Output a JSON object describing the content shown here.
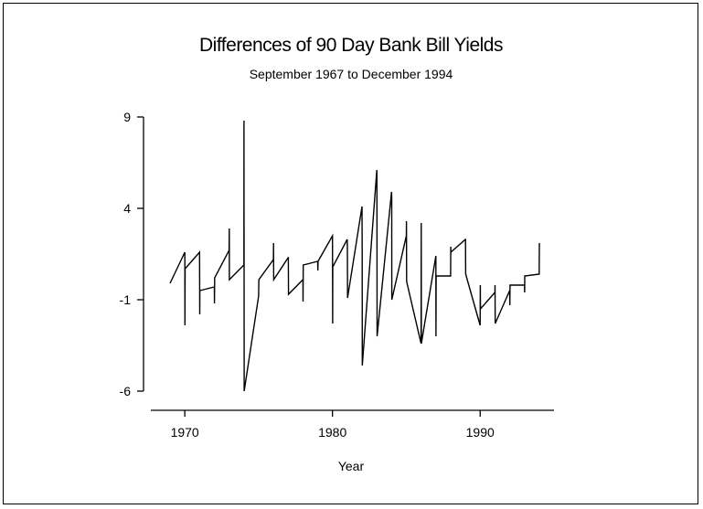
{
  "chart_data": {
    "type": "line",
    "title": "Differences of 90 Day Bank Bill Yields",
    "subtitle": "September 1967 to December 1994",
    "xlabel": "Year",
    "ylabel": "",
    "xlim": [
      1967.7,
      1995.0
    ],
    "ylim": [
      -6.3,
      9.2
    ],
    "xticks": [
      1970,
      1980,
      1990
    ],
    "xtick_labels": [
      "1970",
      "1980",
      "1990"
    ],
    "yticks": [
      9,
      4,
      -1,
      -6
    ],
    "ytick_labels": [
      "9",
      "4",
      "-1",
      "-6"
    ],
    "grid": false,
    "legend": "none",
    "x": [
      1969.0,
      1970.0,
      1970.01,
      1970.02,
      1971.0,
      1971.01,
      1971.02,
      1972.0,
      1972.01,
      1972.02,
      1973.0,
      1973.01,
      1973.02,
      1974.0,
      1974.01,
      1974.02,
      1975.0,
      1975.01,
      1975.02,
      1976.0,
      1976.01,
      1976.02,
      1977.0,
      1977.01,
      1977.02,
      1978.0,
      1978.01,
      1978.02,
      1979.0,
      1979.01,
      1979.02,
      1980.0,
      1980.01,
      1980.02,
      1981.0,
      1981.01,
      1981.02,
      1982.0,
      1982.01,
      1982.02,
      1983.0,
      1983.01,
      1983.02,
      1984.0,
      1984.01,
      1984.02,
      1985.0,
      1985.01,
      1985.02,
      1986.0,
      1986.01,
      1986.02,
      1987.0,
      1987.01,
      1987.02,
      1988.0,
      1988.01,
      1988.02,
      1989.0,
      1989.01,
      1989.02,
      1990.0,
      1990.01,
      1990.02,
      1991.0,
      1991.01,
      1991.02,
      1992.0,
      1992.01,
      1992.02,
      1993.0,
      1993.01,
      1993.02,
      1994.0,
      1994.01
    ],
    "y": [
      -0.1,
      1.6,
      -2.4,
      0.7,
      1.6,
      -1.8,
      -0.5,
      -0.3,
      -1.2,
      0.2,
      1.7,
      2.9,
      0.1,
      0.9,
      8.8,
      -6.0,
      -0.8,
      -0.1,
      0.1,
      1.2,
      2.1,
      0.1,
      1.3,
      1.3,
      -0.7,
      0.1,
      -1.1,
      0.9,
      1.1,
      0.6,
      1.1,
      2.5,
      -2.3,
      0.8,
      2.3,
      1.8,
      -0.9,
      4.1,
      1.5,
      -4.6,
      6.1,
      5.8,
      -3.0,
      4.9,
      4.6,
      -1.0,
      2.5,
      3.3,
      0.0,
      -3.4,
      3.2,
      -3.4,
      1.4,
      -3.0,
      0.3,
      0.3,
      1.9,
      1.6,
      2.3,
      2.3,
      0.4,
      -2.4,
      -0.2,
      -1.5,
      -0.6,
      -0.2,
      -2.3,
      -0.5,
      -1.3,
      -0.2,
      -0.2,
      -0.6,
      0.3,
      0.4,
      2.1
    ],
    "color": "#000000"
  }
}
